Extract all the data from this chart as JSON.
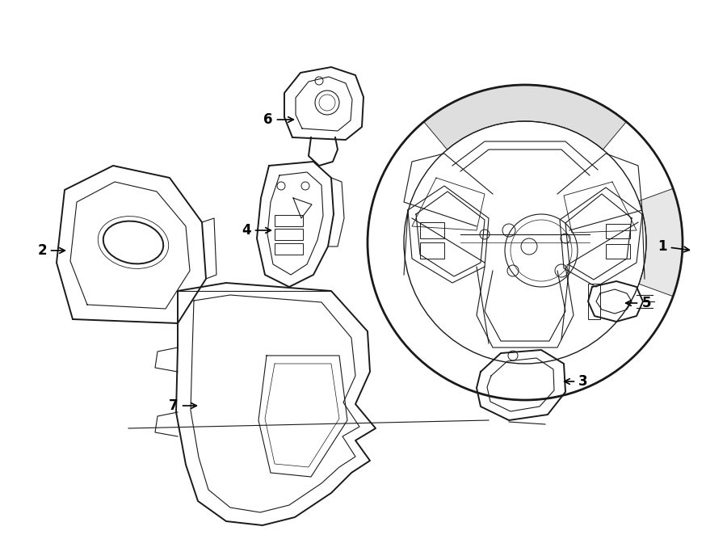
{
  "title": "",
  "background_color": "#ffffff",
  "line_color": "#1a1a1a",
  "fig_width": 9.0,
  "fig_height": 6.62,
  "dpi": 100
}
